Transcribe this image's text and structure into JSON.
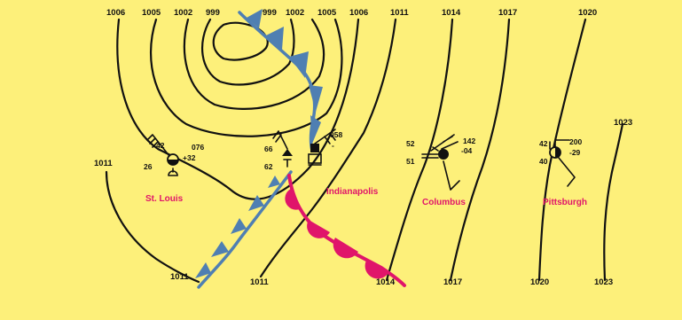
{
  "map": {
    "colors": {
      "background": "#fdf07a",
      "isobar": "#111111",
      "cold_front": "#4f7fb2",
      "warm_front": "#e0156a",
      "city_label": "#e0156a"
    },
    "isobar_labels_top": [
      "1006",
      "1005",
      "1002",
      "999",
      "999",
      "1002",
      "1005",
      "1006",
      "1011",
      "1014",
      "1017",
      "1020"
    ],
    "isobar_labels_right": [
      "1023"
    ],
    "isobar_labels_left": [
      "1011"
    ],
    "isobar_labels_bottom": [
      "1011",
      "1011",
      "1014",
      "1017",
      "1020",
      "1023"
    ],
    "cities": [
      {
        "name": "St. Louis"
      },
      {
        "name": "Indianapolis"
      },
      {
        "name": "Columbus"
      },
      {
        "name": "Pittsburgh"
      }
    ],
    "stations": {
      "st_louis": {
        "temperature": "42",
        "dewpoint": "26",
        "pressure": "076",
        "tendency": "+32"
      },
      "indianapolis_west": {
        "temperature": "66",
        "dewpoint": "62"
      },
      "indianapolis_east": {
        "pressure": "058",
        "tendency": "-"
      },
      "columbus": {
        "temperature": "52",
        "dewpoint": "51",
        "pressure": "142",
        "tendency": "-04"
      },
      "pittsburgh": {
        "temperature": "42",
        "dewpoint": "40",
        "pressure": "200",
        "tendency": "-29"
      }
    },
    "fronts": [
      {
        "type": "cold",
        "icon": "cold-front-triangles"
      },
      {
        "type": "warm",
        "icon": "warm-front-semicircles"
      }
    ]
  }
}
